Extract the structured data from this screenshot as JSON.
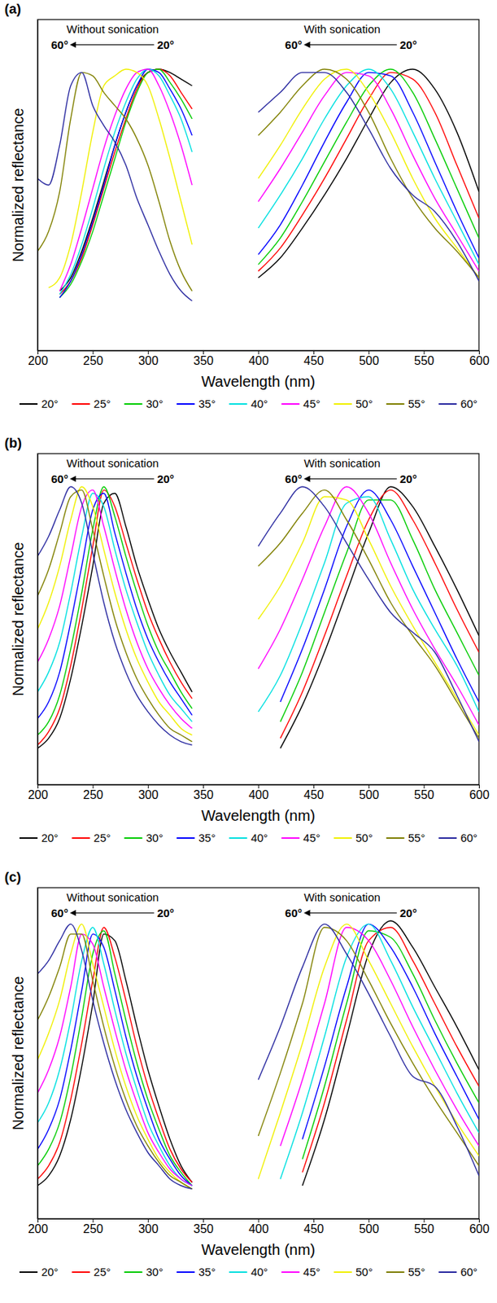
{
  "chart_data": [
    {
      "type": "line",
      "title": "(a)",
      "x_label": "Wavelength (nm)",
      "y_label": "Normalized reflectance",
      "annotations": [
        "Without sonication",
        "60°",
        "20°",
        "With sonication",
        "60°",
        "20°"
      ],
      "xlim": [
        200,
        600
      ],
      "xticks": [
        200,
        250,
        300,
        350,
        400,
        450,
        500,
        550,
        600
      ],
      "ylim": [
        0,
        1
      ],
      "yticks": [],
      "tick_labels": "x",
      "grid": false,
      "legend": "bottom",
      "x": [
        200,
        210,
        220,
        230,
        240,
        250,
        260,
        270,
        280,
        290,
        300,
        310,
        320,
        330,
        340,
        370,
        400,
        420,
        440,
        460,
        480,
        500,
        520,
        540,
        560,
        580,
        600
      ],
      "series": [
        {
          "name": "20°",
          "color": "#000000",
          "values": [
            null,
            null,
            0.18,
            0.22,
            0.3,
            0.4,
            0.51,
            0.62,
            0.72,
            0.8,
            0.84,
            0.85,
            0.84,
            0.82,
            0.8,
            null,
            0.22,
            0.28,
            0.37,
            0.47,
            0.58,
            0.7,
            0.81,
            0.85,
            0.79,
            0.66,
            0.48
          ]
        },
        {
          "name": "25°",
          "color": "#ff0000",
          "values": [
            null,
            null,
            0.17,
            0.21,
            0.28,
            0.38,
            0.49,
            0.6,
            0.7,
            0.79,
            0.84,
            0.85,
            0.83,
            0.78,
            0.73,
            null,
            0.24,
            0.31,
            0.41,
            0.52,
            0.64,
            0.76,
            0.84,
            0.82,
            0.72,
            0.56,
            0.4
          ]
        },
        {
          "name": "30°",
          "color": "#00cc00",
          "values": [
            null,
            null,
            0.16,
            0.2,
            0.27,
            0.36,
            0.47,
            0.58,
            0.69,
            0.78,
            0.84,
            0.85,
            0.81,
            0.76,
            0.7,
            null,
            0.26,
            0.34,
            0.45,
            0.57,
            0.69,
            0.8,
            0.85,
            0.78,
            0.64,
            0.49,
            0.34
          ]
        },
        {
          "name": "35°",
          "color": "#0000ff",
          "values": [
            null,
            null,
            0.16,
            0.21,
            0.29,
            0.39,
            0.5,
            0.62,
            0.72,
            0.8,
            0.85,
            0.84,
            0.79,
            0.73,
            0.65,
            null,
            0.29,
            0.38,
            0.5,
            0.63,
            0.75,
            0.84,
            0.83,
            0.72,
            0.57,
            0.42,
            0.28
          ]
        },
        {
          "name": "40°",
          "color": "#00e0e0",
          "values": [
            null,
            null,
            0.17,
            0.23,
            0.32,
            0.43,
            0.55,
            0.66,
            0.75,
            0.82,
            0.85,
            0.83,
            0.77,
            0.7,
            0.6,
            null,
            0.37,
            0.47,
            0.58,
            0.7,
            0.8,
            0.85,
            0.79,
            0.66,
            0.52,
            0.39,
            0.26
          ]
        },
        {
          "name": "45°",
          "color": "#ff00ff",
          "values": [
            null,
            null,
            0.18,
            0.26,
            0.37,
            0.49,
            0.61,
            0.71,
            0.79,
            0.84,
            0.85,
            0.8,
            0.72,
            0.62,
            0.5,
            null,
            0.45,
            0.55,
            0.66,
            0.77,
            0.84,
            0.83,
            0.73,
            0.59,
            0.46,
            0.35,
            0.24
          ]
        },
        {
          "name": "50°",
          "color": "#f0f000",
          "values": [
            null,
            0.19,
            0.22,
            0.32,
            0.48,
            0.66,
            0.8,
            0.83,
            0.85,
            0.84,
            0.8,
            0.7,
            0.58,
            0.45,
            0.32,
            null,
            0.52,
            0.62,
            0.73,
            0.82,
            0.85,
            0.78,
            0.66,
            0.52,
            0.4,
            0.31,
            0.22
          ]
        },
        {
          "name": "55°",
          "color": "#808000",
          "values": [
            0.3,
            0.36,
            0.48,
            0.7,
            0.84,
            0.83,
            0.78,
            0.74,
            0.7,
            0.64,
            0.56,
            0.45,
            0.33,
            0.24,
            0.18,
            null,
            0.65,
            0.72,
            0.8,
            0.85,
            0.82,
            0.72,
            0.58,
            0.46,
            0.37,
            0.3,
            0.22
          ]
        },
        {
          "name": "60°",
          "color": "#2a2aa0",
          "values": [
            0.52,
            0.5,
            0.62,
            0.8,
            0.84,
            0.74,
            0.68,
            0.63,
            0.56,
            0.46,
            0.38,
            0.3,
            0.23,
            0.18,
            0.15,
            null,
            0.72,
            0.78,
            0.84,
            0.84,
            0.78,
            0.67,
            0.55,
            0.47,
            0.42,
            0.33,
            0.21
          ]
        }
      ]
    },
    {
      "type": "line",
      "title": "(b)",
      "x_label": "Wavelength (nm)",
      "y_label": "Normalized reflectance",
      "annotations": [
        "Without sonication",
        "60°",
        "20°",
        "With sonication",
        "60°",
        "20°"
      ],
      "xlim": [
        200,
        600
      ],
      "xticks": [
        200,
        250,
        300,
        350,
        400,
        450,
        500,
        550,
        600
      ],
      "ylim": [
        0,
        1
      ],
      "yticks": [],
      "tick_labels": "x",
      "grid": false,
      "legend": "bottom",
      "x": [
        200,
        210,
        220,
        230,
        240,
        250,
        260,
        270,
        280,
        290,
        300,
        310,
        320,
        330,
        340,
        370,
        400,
        420,
        440,
        460,
        480,
        500,
        520,
        540,
        560,
        580,
        600
      ],
      "series": [
        {
          "name": "20°",
          "color": "#000000",
          "values": [
            0.11,
            0.14,
            0.2,
            0.32,
            0.48,
            0.66,
            0.85,
            0.88,
            0.78,
            0.66,
            0.56,
            0.47,
            0.4,
            0.34,
            0.28,
            null,
            null,
            0.11,
            0.24,
            0.4,
            0.58,
            0.76,
            0.9,
            0.84,
            0.72,
            0.59,
            0.45
          ]
        },
        {
          "name": "25°",
          "color": "#ff0000",
          "values": [
            0.12,
            0.16,
            0.23,
            0.36,
            0.53,
            0.72,
            0.89,
            0.84,
            0.73,
            0.62,
            0.52,
            0.44,
            0.37,
            0.31,
            0.26,
            null,
            null,
            0.14,
            0.28,
            0.45,
            0.63,
            0.8,
            0.89,
            0.8,
            0.67,
            0.53,
            0.4
          ]
        },
        {
          "name": "30°",
          "color": "#00cc00",
          "values": [
            0.15,
            0.19,
            0.27,
            0.41,
            0.58,
            0.77,
            0.9,
            0.81,
            0.69,
            0.58,
            0.48,
            0.4,
            0.34,
            0.28,
            0.23,
            null,
            null,
            0.19,
            0.34,
            0.52,
            0.7,
            0.86,
            0.86,
            0.74,
            0.59,
            0.46,
            0.33
          ]
        },
        {
          "name": "35°",
          "color": "#0000ff",
          "values": [
            0.2,
            0.25,
            0.34,
            0.49,
            0.66,
            0.83,
            0.88,
            0.76,
            0.64,
            0.53,
            0.44,
            0.37,
            0.31,
            0.26,
            0.21,
            null,
            null,
            0.25,
            0.41,
            0.59,
            0.78,
            0.89,
            0.8,
            0.66,
            0.52,
            0.38,
            0.25
          ]
        },
        {
          "name": "40°",
          "color": "#00e0e0",
          "values": [
            0.28,
            0.34,
            0.43,
            0.58,
            0.75,
            0.88,
            0.84,
            0.71,
            0.59,
            0.49,
            0.4,
            0.33,
            0.27,
            0.23,
            0.19,
            null,
            0.22,
            0.33,
            0.49,
            0.67,
            0.85,
            0.87,
            0.74,
            0.59,
            0.47,
            0.36,
            0.22
          ]
        },
        {
          "name": "45°",
          "color": "#ff00ff",
          "values": [
            0.37,
            0.44,
            0.54,
            0.69,
            0.84,
            0.89,
            0.78,
            0.65,
            0.53,
            0.43,
            0.35,
            0.29,
            0.24,
            0.2,
            0.17,
            null,
            0.35,
            0.47,
            0.62,
            0.78,
            0.9,
            0.82,
            0.67,
            0.53,
            0.41,
            0.3,
            0.18
          ]
        },
        {
          "name": "50°",
          "color": "#f0f000",
          "values": [
            0.47,
            0.55,
            0.66,
            0.8,
            0.9,
            0.84,
            0.71,
            0.58,
            0.47,
            0.38,
            0.31,
            0.25,
            0.21,
            0.17,
            0.15,
            null,
            0.5,
            0.6,
            0.73,
            0.87,
            0.86,
            0.74,
            0.6,
            0.48,
            0.37,
            0.26,
            0.15
          ]
        },
        {
          "name": "55°",
          "color": "#808000",
          "values": [
            0.57,
            0.65,
            0.76,
            0.87,
            0.89,
            0.77,
            0.63,
            0.5,
            0.4,
            0.32,
            0.26,
            0.21,
            0.17,
            0.15,
            0.13,
            null,
            0.66,
            0.73,
            0.82,
            0.89,
            0.8,
            0.68,
            0.55,
            0.45,
            0.36,
            0.25,
            0.14
          ]
        },
        {
          "name": "60°",
          "color": "#2a2aa0",
          "values": [
            0.69,
            0.75,
            0.83,
            0.9,
            0.85,
            0.7,
            0.55,
            0.43,
            0.34,
            0.27,
            0.22,
            0.18,
            0.15,
            0.13,
            0.12,
            null,
            0.72,
            0.82,
            0.9,
            0.84,
            0.73,
            0.62,
            0.52,
            0.46,
            0.4,
            0.27,
            0.13
          ]
        }
      ]
    },
    {
      "type": "line",
      "title": "(c)",
      "x_label": "Wavelength (nm)",
      "y_label": "Normalized reflectance",
      "annotations": [
        "Without sonication",
        "60°",
        "20°",
        "With sonication",
        "60°",
        "20°"
      ],
      "xlim": [
        200,
        600
      ],
      "xticks": [
        200,
        250,
        300,
        350,
        400,
        450,
        500,
        550,
        600
      ],
      "ylim": [
        0,
        1
      ],
      "yticks": [],
      "tick_labels": "x",
      "grid": false,
      "legend": "bottom",
      "x": [
        200,
        210,
        220,
        230,
        240,
        250,
        260,
        270,
        280,
        290,
        300,
        310,
        320,
        330,
        340,
        370,
        400,
        420,
        440,
        460,
        480,
        500,
        520,
        540,
        560,
        580,
        600
      ],
      "series": [
        {
          "name": "20°",
          "color": "#000000",
          "values": [
            0.1,
            0.13,
            0.19,
            0.3,
            0.46,
            0.65,
            0.86,
            0.84,
            0.72,
            0.58,
            0.45,
            0.34,
            0.24,
            0.16,
            0.11,
            null,
            null,
            null,
            0.1,
            0.3,
            0.55,
            0.8,
            0.9,
            0.82,
            0.7,
            0.58,
            0.45
          ]
        },
        {
          "name": "25°",
          "color": "#ff0000",
          "values": [
            0.12,
            0.16,
            0.23,
            0.36,
            0.53,
            0.72,
            0.88,
            0.79,
            0.66,
            0.52,
            0.4,
            0.3,
            0.21,
            0.15,
            0.11,
            null,
            null,
            null,
            0.14,
            0.35,
            0.6,
            0.84,
            0.88,
            0.78,
            0.65,
            0.52,
            0.4
          ]
        },
        {
          "name": "30°",
          "color": "#00cc00",
          "values": [
            0.16,
            0.21,
            0.29,
            0.43,
            0.61,
            0.8,
            0.87,
            0.74,
            0.6,
            0.47,
            0.36,
            0.27,
            0.19,
            0.14,
            0.1,
            null,
            null,
            null,
            0.18,
            0.4,
            0.65,
            0.87,
            0.85,
            0.74,
            0.6,
            0.47,
            0.35
          ]
        },
        {
          "name": "35°",
          "color": "#0000ff",
          "values": [
            0.21,
            0.27,
            0.36,
            0.51,
            0.69,
            0.86,
            0.82,
            0.69,
            0.55,
            0.43,
            0.33,
            0.24,
            0.18,
            0.13,
            0.1,
            null,
            null,
            null,
            0.24,
            0.46,
            0.7,
            0.89,
            0.82,
            0.7,
            0.56,
            0.43,
            0.3
          ]
        },
        {
          "name": "40°",
          "color": "#00e0e0",
          "values": [
            0.29,
            0.35,
            0.45,
            0.6,
            0.78,
            0.88,
            0.77,
            0.63,
            0.5,
            0.39,
            0.29,
            0.22,
            0.16,
            0.12,
            0.1,
            null,
            null,
            0.12,
            0.32,
            0.55,
            0.79,
            0.89,
            0.78,
            0.64,
            0.51,
            0.38,
            0.26
          ]
        },
        {
          "name": "45°",
          "color": "#ff00ff",
          "values": [
            0.38,
            0.45,
            0.55,
            0.7,
            0.86,
            0.83,
            0.7,
            0.57,
            0.45,
            0.35,
            0.26,
            0.2,
            0.15,
            0.12,
            0.1,
            null,
            null,
            0.22,
            0.42,
            0.65,
            0.88,
            0.84,
            0.72,
            0.58,
            0.45,
            0.33,
            0.22
          ]
        },
        {
          "name": "50°",
          "color": "#f0f000",
          "values": [
            0.48,
            0.56,
            0.66,
            0.8,
            0.89,
            0.77,
            0.64,
            0.51,
            0.4,
            0.31,
            0.24,
            0.18,
            0.14,
            0.11,
            0.09,
            null,
            0.12,
            0.32,
            0.53,
            0.76,
            0.89,
            0.78,
            0.65,
            0.52,
            0.4,
            0.29,
            0.19
          ]
        },
        {
          "name": "55°",
          "color": "#808000",
          "values": [
            0.6,
            0.67,
            0.76,
            0.86,
            0.86,
            0.72,
            0.58,
            0.46,
            0.36,
            0.28,
            0.22,
            0.17,
            0.13,
            0.11,
            0.09,
            null,
            0.25,
            0.44,
            0.65,
            0.88,
            0.84,
            0.72,
            0.59,
            0.47,
            0.36,
            0.26,
            0.16
          ]
        },
        {
          "name": "60°",
          "color": "#2a2aa0",
          "values": [
            0.74,
            0.78,
            0.84,
            0.89,
            0.81,
            0.66,
            0.53,
            0.42,
            0.33,
            0.26,
            0.2,
            0.16,
            0.12,
            0.1,
            0.09,
            null,
            0.42,
            0.58,
            0.76,
            0.89,
            0.8,
            0.68,
            0.55,
            0.43,
            0.4,
            0.28,
            0.13
          ]
        }
      ]
    }
  ]
}
